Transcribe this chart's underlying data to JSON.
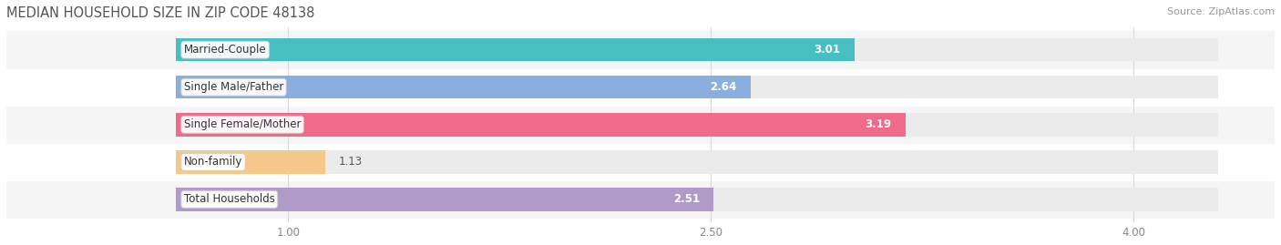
{
  "title": "MEDIAN HOUSEHOLD SIZE IN ZIP CODE 48138",
  "source": "Source: ZipAtlas.com",
  "categories": [
    "Married-Couple",
    "Single Male/Father",
    "Single Female/Mother",
    "Non-family",
    "Total Households"
  ],
  "values": [
    3.01,
    2.64,
    3.19,
    1.13,
    2.51
  ],
  "bar_colors": [
    "#45bfbf",
    "#8aaee0",
    "#f06b8a",
    "#f5c98a",
    "#b09ac8"
  ],
  "bar_bg_color": "#ebebeb",
  "xlim_min": 0.0,
  "xlim_max": 4.5,
  "xaxis_min": 0.6,
  "xaxis_max": 4.3,
  "xticks": [
    1.0,
    2.5,
    4.0
  ],
  "title_fontsize": 10.5,
  "source_fontsize": 8,
  "label_fontsize": 8.5,
  "value_fontsize": 8.5,
  "background_color": "#ffffff",
  "bar_height": 0.62,
  "row_bg_colors": [
    "#f5f5f5",
    "#ffffff"
  ],
  "grid_color": "#d8d8d8",
  "label_bg_color": "#ffffff",
  "label_border_color": "#cccccc",
  "title_color": "#555555",
  "source_color": "#999999",
  "value_color": "#555555",
  "tick_color": "#888888"
}
